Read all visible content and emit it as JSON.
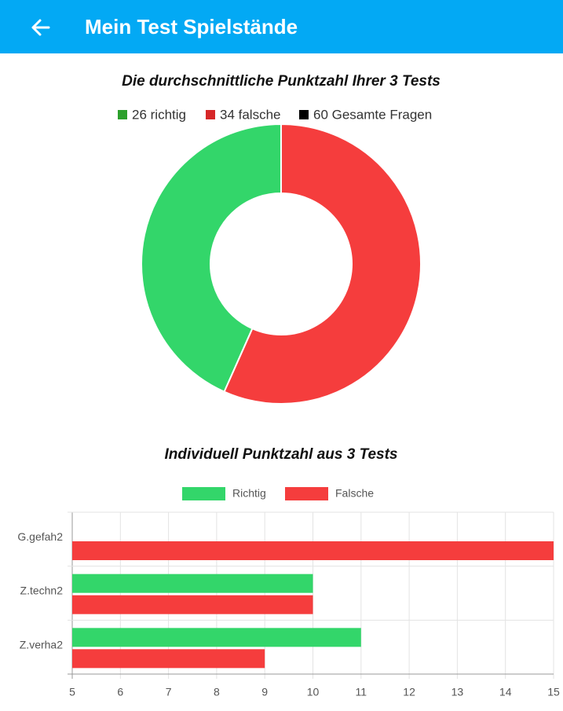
{
  "header": {
    "title": "Mein Test Spielstände"
  },
  "chart_data": [
    {
      "type": "doughnut",
      "title": "Die durchschnittliche Punktzahl Ihrer 3 Tests",
      "legend": [
        {
          "label": "26 richtig",
          "color": "#2ca02c"
        },
        {
          "label": "34 falsche",
          "color": "#d62728"
        },
        {
          "label": "60 Gesamte Fragen",
          "color": "#000000"
        }
      ],
      "values": [
        26,
        34
      ],
      "colors": [
        "#33d66a",
        "#f53d3d"
      ],
      "total": 60
    },
    {
      "type": "hbar",
      "title": "Individuell Punktzahl aus 3 Tests",
      "categories": [
        "G.gefah2",
        "Z.techn2",
        "Z.verha2"
      ],
      "series": [
        {
          "name": "Richtig",
          "color": "#33d66a",
          "values": [
            5,
            10,
            11
          ]
        },
        {
          "name": "Falsche",
          "color": "#f53d3d",
          "values": [
            15,
            10,
            9
          ]
        }
      ],
      "xlim": [
        5,
        15
      ],
      "xticks": [
        5,
        6,
        7,
        8,
        9,
        10,
        11,
        12,
        13,
        14,
        15
      ],
      "grid": true
    }
  ]
}
